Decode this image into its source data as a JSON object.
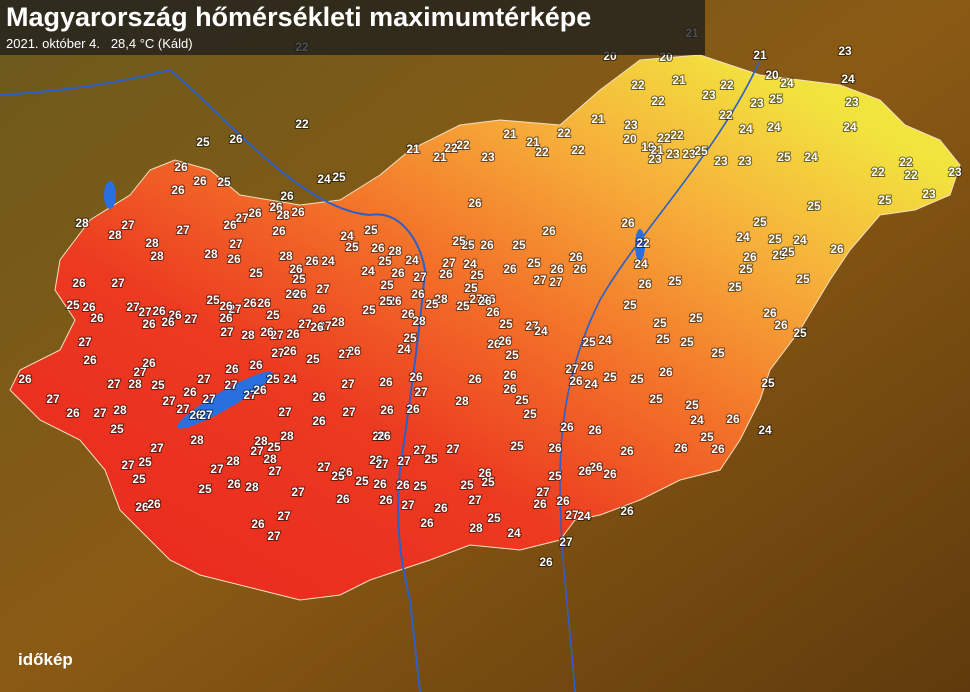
{
  "header": {
    "title": "Magyarország hőmérsékleti maximumtérképe",
    "date": "2021. október 4.",
    "maximum": "28,4 °C (Káld)"
  },
  "logo": "időkép",
  "stations": [
    22,
    20,
    20,
    21,
    21,
    23,
    20,
    24,
    24,
    25,
    22,
    21,
    22,
    22,
    23,
    23,
    22,
    23,
    22,
    25,
    26,
    26,
    26,
    25,
    26,
    24,
    25,
    26,
    26,
    28,
    26,
    26,
    27,
    26,
    27,
    28,
    28,
    27,
    28,
    28,
    27,
    26,
    28,
    26,
    25,
    28,
    26,
    26,
    24,
    24,
    25,
    25,
    26,
    24,
    25,
    28,
    26,
    25,
    24,
    27,
    26,
    26,
    25,
    25,
    28,
    21,
    21,
    22,
    22,
    23,
    21,
    21,
    22,
    22,
    22,
    21,
    23,
    20,
    19,
    21,
    22,
    22,
    23,
    23,
    23,
    25,
    23,
    23,
    24,
    24,
    25,
    24,
    24,
    22,
    22,
    22,
    23,
    23,
    25,
    25,
    25,
    24,
    25,
    24,
    25,
    25,
    26,
    25,
    26,
    25,
    25,
    25,
    26,
    26,
    22,
    24,
    25,
    25,
    25,
    26,
    26,
    25,
    25,
    25,
    25,
    24,
    25,
    27,
    26,
    26,
    24,
    25,
    25,
    25,
    26,
    25,
    24,
    25,
    26,
    26,
    24,
    25,
    26,
    26,
    26,
    26,
    26,
    26,
    26,
    26,
    27,
    26,
    26,
    27,
    24,
    26,
    25,
    25,
    25,
    25,
    26,
    26,
    26,
    28,
    27,
    27,
    25,
    26,
    26,
    26,
    27,
    26,
    27,
    24,
    26,
    26,
    27,
    27,
    26,
    25,
    24,
    26,
    25,
    26,
    26,
    25,
    26,
    26,
    25,
    25,
    24,
    25,
    27,
    26,
    25,
    26,
    27,
    25,
    26,
    25,
    26,
    25,
    28,
    26,
    26,
    25,
    26,
    27,
    26,
    28,
    27,
    26,
    27,
    27,
    26,
    28,
    27,
    27,
    26,
    26,
    25,
    26,
    26,
    27,
    26,
    25,
    26,
    26,
    25,
    27,
    26,
    26,
    27,
    26,
    26,
    27,
    27,
    26,
    25,
    26,
    26,
    27,
    26,
    26,
    27,
    26,
    27,
    28,
    25,
    27,
    28,
    27,
    26,
    25,
    27,
    27,
    26,
    27,
    27,
    26,
    27,
    27,
    26,
    26,
    27,
    26,
    25,
    24,
    27,
    26,
    25,
    27,
    26,
    26,
    27,
    26,
    27,
    26,
    26,
    26,
    27,
    25,
    26,
    26,
    26,
    27,
    26,
    26,
    27,
    25,
    25,
    26,
    25,
    28,
    24,
    27,
    26,
    28,
    25,
    28,
    27,
    28,
    28,
    27,
    26,
    28,
    27,
    27,
    27,
    25,
    26,
    25,
    27,
    28,
    27,
    27,
    25,
    25,
    26,
    26,
    25,
    26,
    27,
    27
  ]
}
